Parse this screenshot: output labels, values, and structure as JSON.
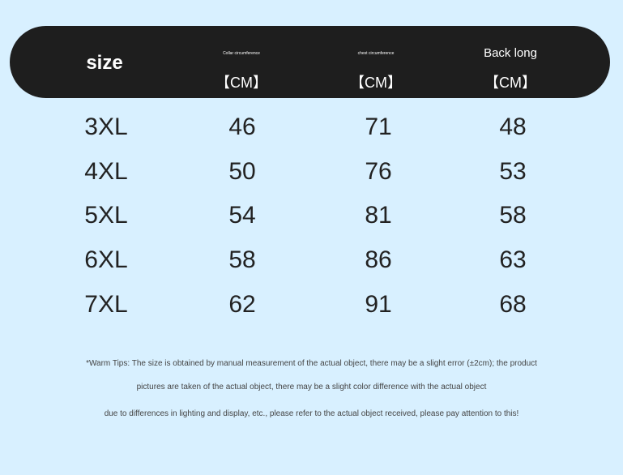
{
  "header": {
    "size": "size",
    "collar": "Collar circumference",
    "chest": "chest circumference",
    "back": "Back long",
    "unit": "【CM】"
  },
  "rows": [
    {
      "size": "3XL",
      "collar": "46",
      "chest": "71",
      "back": "48"
    },
    {
      "size": "4XL",
      "collar": "50",
      "chest": "76",
      "back": "53"
    },
    {
      "size": "5XL",
      "collar": "54",
      "chest": "81",
      "back": "58"
    },
    {
      "size": "6XL",
      "collar": "58",
      "chest": "86",
      "back": "63"
    },
    {
      "size": "7XL",
      "collar": "62",
      "chest": "91",
      "back": "68"
    }
  ],
  "tips": [
    "*Warm Tips: The size is obtained by manual measurement of the actual object, there may be a slight error (±2cm); the product",
    "pictures are taken of the actual object, there may be a slight color difference with the actual object",
    "due to differences in lighting and display, etc., please refer to the actual object received, please pay attention to this!"
  ]
}
